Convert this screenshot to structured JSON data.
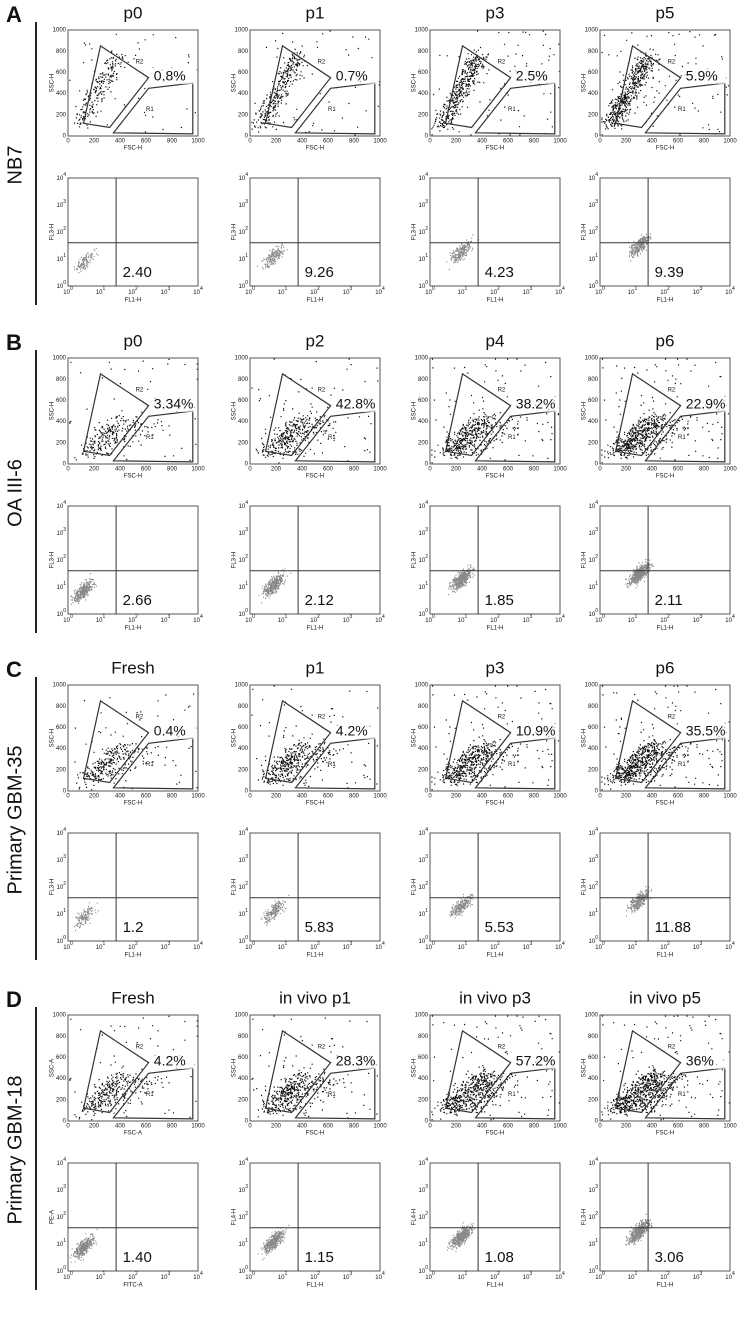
{
  "scatter_ticks": [
    "0",
    "200",
    "400",
    "600",
    "800",
    "1000"
  ],
  "log_base": "10",
  "log_exponents": [
    "0",
    "1",
    "2",
    "3",
    "4"
  ],
  "gate_labels": [
    "R1",
    "R2"
  ],
  "sections": [
    {
      "letter": "A",
      "row_label": "NB7",
      "columns": [
        {
          "header": "p0",
          "gate_percent": "0.8%",
          "quadrant_value": "2.40",
          "x_label": "FSC-H",
          "y_label": "SSC-H",
          "x2_label": "FL1-H",
          "y2_label": "FL3-H"
        },
        {
          "header": "p1",
          "gate_percent": "0.7%",
          "quadrant_value": "9.26",
          "x_label": "FSC-H",
          "y_label": "SSC-H",
          "x2_label": "FL1-H",
          "y2_label": "FL3-H"
        },
        {
          "header": "p3",
          "gate_percent": "2.5%",
          "quadrant_value": "4.23",
          "x_label": "FSC-H",
          "y_label": "SSC-H",
          "x2_label": "FL1-H",
          "y2_label": "FL3-H"
        },
        {
          "header": "p5",
          "gate_percent": "5.9%",
          "quadrant_value": "9.39",
          "x_label": "FSC-H",
          "y_label": "SSC-H",
          "x2_label": "FL1-H",
          "y2_label": "FL3-H"
        }
      ]
    },
    {
      "letter": "B",
      "row_label": "OA III-6",
      "columns": [
        {
          "header": "p0",
          "gate_percent": "3.34%",
          "quadrant_value": "2.66",
          "x_label": "FSC-H",
          "y_label": "SSC-H",
          "x2_label": "FL1-H",
          "y2_label": "FL3-H"
        },
        {
          "header": "p2",
          "gate_percent": "42.8%",
          "quadrant_value": "2.12",
          "x_label": "FSC-H",
          "y_label": "SSC-H",
          "x2_label": "FL1-H",
          "y2_label": "FL3-H"
        },
        {
          "header": "p4",
          "gate_percent": "38.2%",
          "quadrant_value": "1.85",
          "x_label": "FSC-H",
          "y_label": "SSC-H",
          "x2_label": "FL1-H",
          "y2_label": "FL3-H"
        },
        {
          "header": "p6",
          "gate_percent": "22.9%",
          "quadrant_value": "2.11",
          "x_label": "FSC-H",
          "y_label": "SSC-H",
          "x2_label": "FL1-H",
          "y2_label": "FL3-H"
        }
      ]
    },
    {
      "letter": "C",
      "row_label": "Primary GBM-35",
      "columns": [
        {
          "header": "Fresh",
          "gate_percent": "0.4%",
          "quadrant_value": "1.2",
          "x_label": "FSC-H",
          "y_label": "SSC-H",
          "x2_label": "FL1-H",
          "y2_label": "FL3-H"
        },
        {
          "header": "p1",
          "gate_percent": "4.2%",
          "quadrant_value": "5.83",
          "x_label": "FSC-H",
          "y_label": "SSC-H",
          "x2_label": "FL1-H",
          "y2_label": "FL3-H"
        },
        {
          "header": "p3",
          "gate_percent": "10.9%",
          "quadrant_value": "5.53",
          "x_label": "FSC-H",
          "y_label": "SSC-H",
          "x2_label": "FL1-H",
          "y2_label": "FL3-H"
        },
        {
          "header": "p6",
          "gate_percent": "35.5%",
          "quadrant_value": "11.88",
          "x_label": "FSC-H",
          "y_label": "SSC-H",
          "x2_label": "FL1-H",
          "y2_label": "FL3-H"
        }
      ]
    },
    {
      "letter": "D",
      "row_label": "Primary GBM-18",
      "columns": [
        {
          "header": "Fresh",
          "gate_percent": "4.2%",
          "quadrant_value": "1.40",
          "x_label": "FSC-A",
          "y_label": "SSC-A",
          "x2_label": "FITC-A",
          "y2_label": "PE-A"
        },
        {
          "header": "in vivo p1",
          "gate_percent": "28.3%",
          "quadrant_value": "1.15",
          "x_label": "FSC-H",
          "y_label": "SSC-H",
          "x2_label": "FL1-H",
          "y2_label": "FL4-H"
        },
        {
          "header": "in vivo p3",
          "gate_percent": "57.2%",
          "quadrant_value": "1.08",
          "x_label": "FSC-H",
          "y_label": "SSC-H",
          "x2_label": "FL1-H",
          "y2_label": "FL4-H"
        },
        {
          "header": "in vivo p5",
          "gate_percent": "36%",
          "quadrant_value": "3.06",
          "x_label": "FSC-H",
          "y_label": "SSC-H",
          "x2_label": "FL1-H",
          "y2_label": "FL3-H"
        }
      ]
    }
  ]
}
